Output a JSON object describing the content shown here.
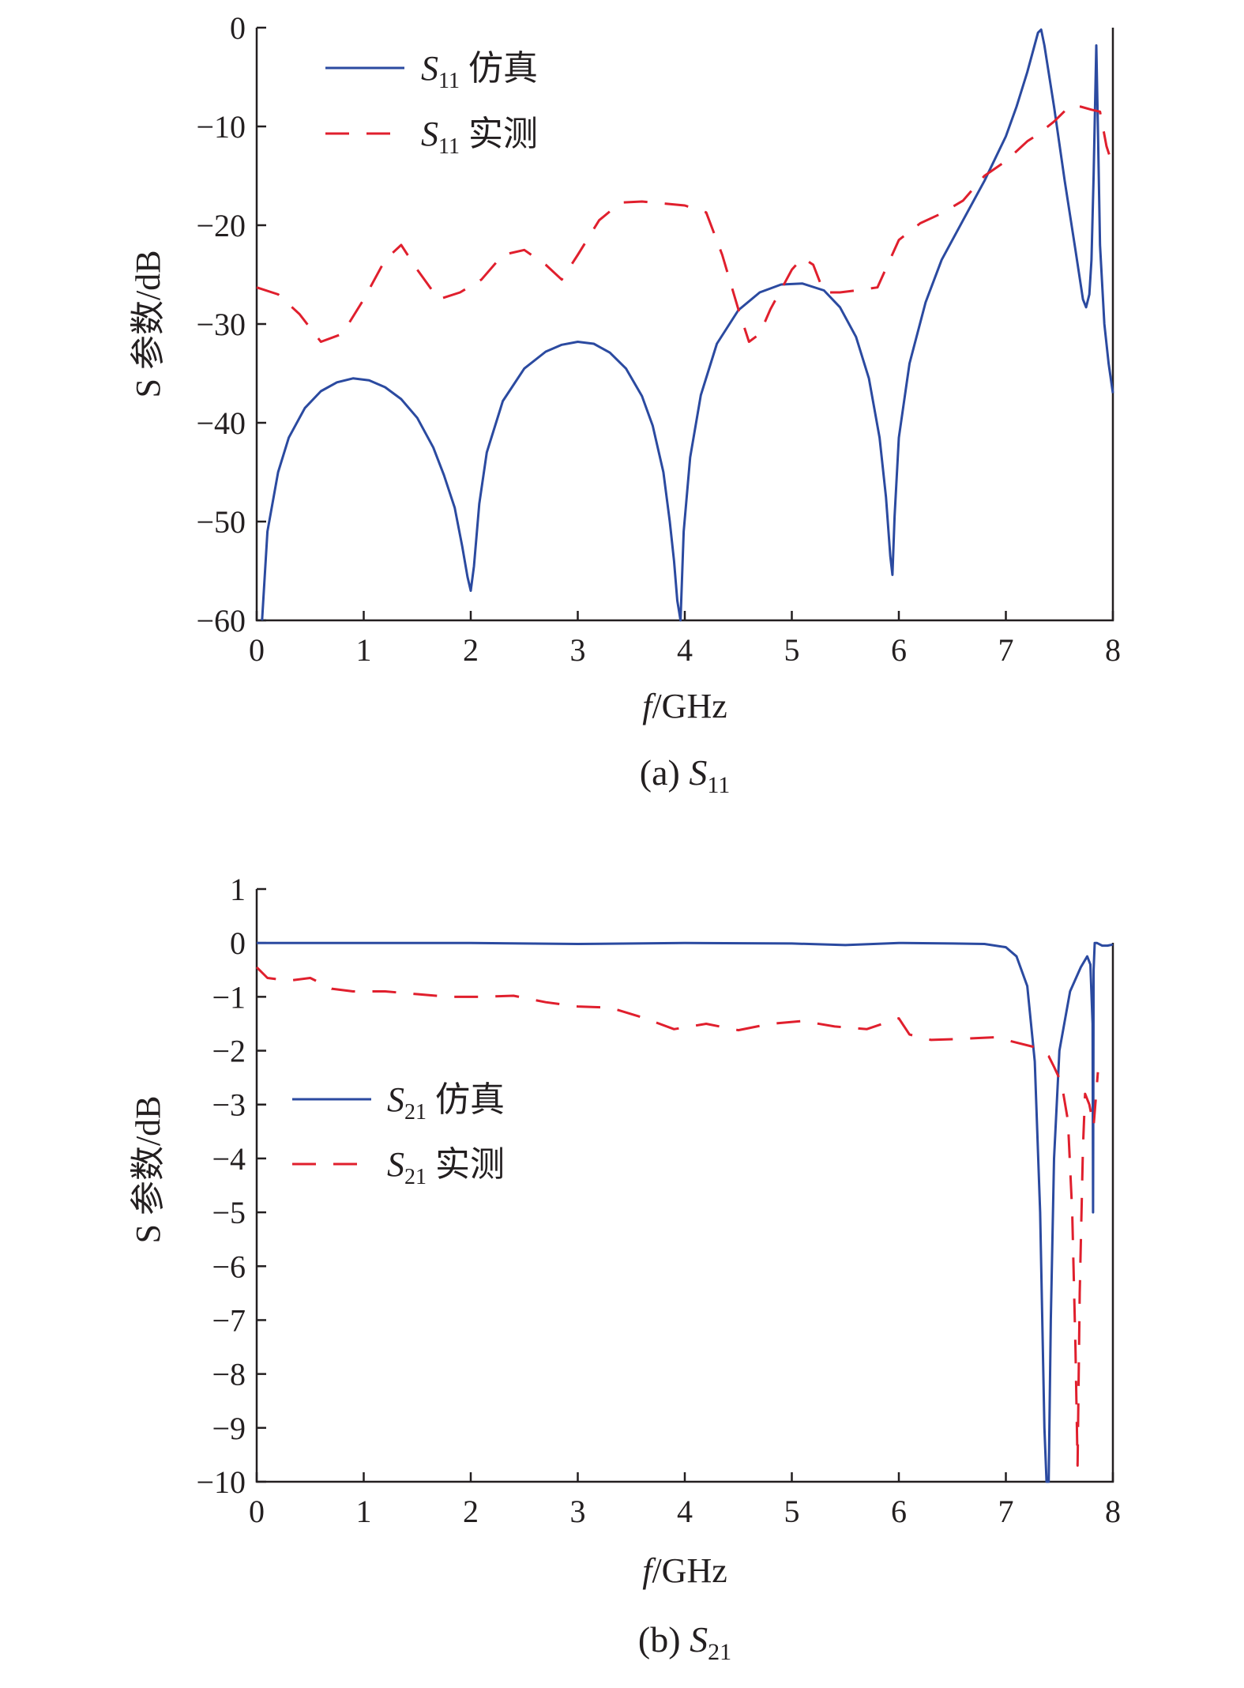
{
  "colors": {
    "simulated": "#2b4aa0",
    "measured": "#e01f2d",
    "axis": "#231f20"
  },
  "chart_data": [
    {
      "type": "line",
      "caption_prefix": "(a) ",
      "caption_symbol": "S",
      "caption_subscript": "11",
      "xlabel_italic": "f",
      "xlabel_rest": "/GHz",
      "ylabel": "S 参数/dB",
      "xlim": [
        0,
        8
      ],
      "ylim": [
        -60,
        0
      ],
      "xticks": [
        0,
        1,
        2,
        3,
        4,
        5,
        6,
        7,
        8
      ],
      "yticks": [
        0,
        -10,
        -20,
        -30,
        -40,
        -50,
        -60
      ],
      "ytick_labels": [
        "0",
        "−10",
        "−20",
        "−30",
        "−40",
        "−50",
        "−60"
      ],
      "legend_position": "top-left",
      "series": [
        {
          "name_symbol": "S",
          "name_subscript": "11",
          "name_suffix": " 仿真",
          "style": "solid",
          "x": [
            0.05,
            0.1,
            0.2,
            0.3,
            0.45,
            0.6,
            0.75,
            0.9,
            1.05,
            1.2,
            1.35,
            1.5,
            1.65,
            1.75,
            1.85,
            1.92,
            1.97,
            2.0,
            2.03,
            2.08,
            2.15,
            2.3,
            2.5,
            2.7,
            2.85,
            3.0,
            3.15,
            3.3,
            3.45,
            3.6,
            3.7,
            3.8,
            3.86,
            3.9,
            3.93,
            3.96,
            3.99,
            4.05,
            4.15,
            4.3,
            4.5,
            4.7,
            4.9,
            5.1,
            5.3,
            5.45,
            5.6,
            5.72,
            5.82,
            5.88,
            5.92,
            5.94,
            5.96,
            6.0,
            6.1,
            6.25,
            6.4,
            6.6,
            6.8,
            7.0,
            7.1,
            7.2,
            7.25,
            7.3,
            7.33,
            7.36,
            7.45,
            7.55,
            7.65,
            7.72,
            7.75,
            7.78,
            7.8,
            7.82,
            7.845,
            7.86,
            7.88,
            7.92,
            7.96,
            8.0
          ],
          "y": [
            -60,
            -51,
            -45,
            -41.5,
            -38.5,
            -36.8,
            -35.9,
            -35.5,
            -35.7,
            -36.4,
            -37.6,
            -39.5,
            -42.5,
            -45.3,
            -48.6,
            -52.5,
            -55.6,
            -57.0,
            -54.5,
            -48.2,
            -43.0,
            -37.8,
            -34.5,
            -32.8,
            -32.1,
            -31.8,
            -32.0,
            -32.9,
            -34.5,
            -37.3,
            -40.3,
            -45.0,
            -50.0,
            -54.0,
            -58.0,
            -60,
            -51.0,
            -43.5,
            -37.2,
            -32.0,
            -28.6,
            -26.8,
            -26.0,
            -25.9,
            -26.6,
            -28.3,
            -31.3,
            -35.5,
            -41.5,
            -47.5,
            -53.5,
            -55.4,
            -49.5,
            -41.5,
            -34.0,
            -27.8,
            -23.5,
            -19.5,
            -15.5,
            -11.0,
            -8.0,
            -4.5,
            -2.5,
            -0.5,
            -0.2,
            -1.8,
            -8.0,
            -15.5,
            -22.5,
            -27.5,
            -28.3,
            -27.0,
            -23.5,
            -15.0,
            -1.8,
            -10.0,
            -22.0,
            -30.0,
            -34.0,
            -37.0
          ]
        },
        {
          "name_symbol": "S",
          "name_subscript": "11",
          "name_suffix": " 实测",
          "style": "dashed",
          "x": [
            0.0,
            0.2,
            0.4,
            0.6,
            0.8,
            1.0,
            1.2,
            1.35,
            1.5,
            1.7,
            1.9,
            2.1,
            2.3,
            2.5,
            2.7,
            2.85,
            3.0,
            3.2,
            3.4,
            3.6,
            3.8,
            4.0,
            4.2,
            4.35,
            4.5,
            4.6,
            4.7,
            4.8,
            4.9,
            5.0,
            5.1,
            5.2,
            5.3,
            5.45,
            5.6,
            5.8,
            6.0,
            6.2,
            6.4,
            6.6,
            6.8,
            7.0,
            7.2,
            7.3,
            7.45,
            7.6,
            7.7,
            7.8,
            7.88,
            7.94,
            8.0
          ],
          "y": [
            -26.3,
            -27.0,
            -29.0,
            -31.8,
            -31.0,
            -27.5,
            -23.5,
            -22.0,
            -24.5,
            -27.5,
            -26.8,
            -25.5,
            -23.0,
            -22.5,
            -24.0,
            -25.5,
            -23.0,
            -19.5,
            -17.7,
            -17.6,
            -17.8,
            -18.0,
            -18.7,
            -23.0,
            -28.5,
            -31.8,
            -31.0,
            -28.5,
            -26.5,
            -24.5,
            -23.3,
            -24.0,
            -26.8,
            -26.8,
            -26.6,
            -26.3,
            -21.5,
            -19.8,
            -18.8,
            -17.5,
            -15.0,
            -13.5,
            -11.5,
            -10.8,
            -9.5,
            -7.9,
            -8.0,
            -8.3,
            -8.5,
            -12.0,
            -14.0
          ]
        }
      ]
    },
    {
      "type": "line",
      "caption_prefix": "(b) ",
      "caption_symbol": "S",
      "caption_subscript": "21",
      "xlabel_italic": "f",
      "xlabel_rest": "/GHz",
      "ylabel": "S 参数/dB",
      "xlim": [
        0,
        8
      ],
      "ylim": [
        -10,
        1
      ],
      "xticks": [
        0,
        1,
        2,
        3,
        4,
        5,
        6,
        7,
        8
      ],
      "yticks": [
        1,
        0,
        -1,
        -2,
        -3,
        -4,
        -5,
        -6,
        -7,
        -8,
        -9,
        -10
      ],
      "ytick_labels": [
        "1",
        "0",
        "−1",
        "−2",
        "−3",
        "−4",
        "−5",
        "−6",
        "−7",
        "−8",
        "−9",
        "−10"
      ],
      "legend_position": "middle-left",
      "series": [
        {
          "name_symbol": "S",
          "name_subscript": "21",
          "name_suffix": " 仿真",
          "style": "solid",
          "x": [
            0.0,
            0.5,
            1.0,
            2.0,
            3.0,
            4.0,
            5.0,
            5.5,
            6.0,
            6.5,
            6.8,
            7.0,
            7.1,
            7.2,
            7.27,
            7.32,
            7.36,
            7.38,
            7.4,
            7.42,
            7.45,
            7.5,
            7.6,
            7.7,
            7.76,
            7.79,
            7.81,
            7.815,
            7.82,
            7.83,
            7.85,
            7.9,
            7.95,
            8.0
          ],
          "y": [
            0.0,
            0.0,
            0.0,
            0.0,
            -0.02,
            0.0,
            -0.01,
            -0.04,
            0.0,
            -0.01,
            -0.02,
            -0.08,
            -0.25,
            -0.8,
            -2.2,
            -5.0,
            -9.0,
            -10.0,
            -10.0,
            -7.0,
            -4.0,
            -2.0,
            -0.9,
            -0.45,
            -0.25,
            -0.4,
            -1.5,
            -5.0,
            -0.5,
            0.0,
            0.0,
            -0.05,
            -0.05,
            -0.03
          ]
        },
        {
          "name_symbol": "S",
          "name_subscript": "21",
          "name_suffix": " 实测",
          "style": "dashed",
          "x": [
            0.0,
            0.1,
            0.3,
            0.5,
            0.7,
            0.9,
            1.2,
            1.5,
            1.8,
            2.1,
            2.4,
            2.7,
            3.0,
            3.3,
            3.6,
            3.9,
            4.2,
            4.5,
            4.8,
            5.1,
            5.4,
            5.7,
            6.0,
            6.1,
            6.3,
            6.6,
            6.9,
            7.1,
            7.3,
            7.4,
            7.45,
            7.52,
            7.58,
            7.62,
            7.65,
            7.67,
            7.69,
            7.72,
            7.74,
            7.78,
            7.82,
            7.86
          ],
          "y": [
            -0.45,
            -0.65,
            -0.7,
            -0.65,
            -0.85,
            -0.9,
            -0.9,
            -0.95,
            -1.0,
            -1.0,
            -0.98,
            -1.1,
            -1.18,
            -1.2,
            -1.38,
            -1.6,
            -1.5,
            -1.62,
            -1.5,
            -1.45,
            -1.55,
            -1.6,
            -1.4,
            -1.7,
            -1.8,
            -1.78,
            -1.75,
            -1.85,
            -1.95,
            -2.1,
            -2.3,
            -2.6,
            -3.3,
            -5.0,
            -7.5,
            -9.7,
            -6.5,
            -3.8,
            -2.8,
            -3.0,
            -3.4,
            -2.4
          ]
        }
      ]
    }
  ]
}
